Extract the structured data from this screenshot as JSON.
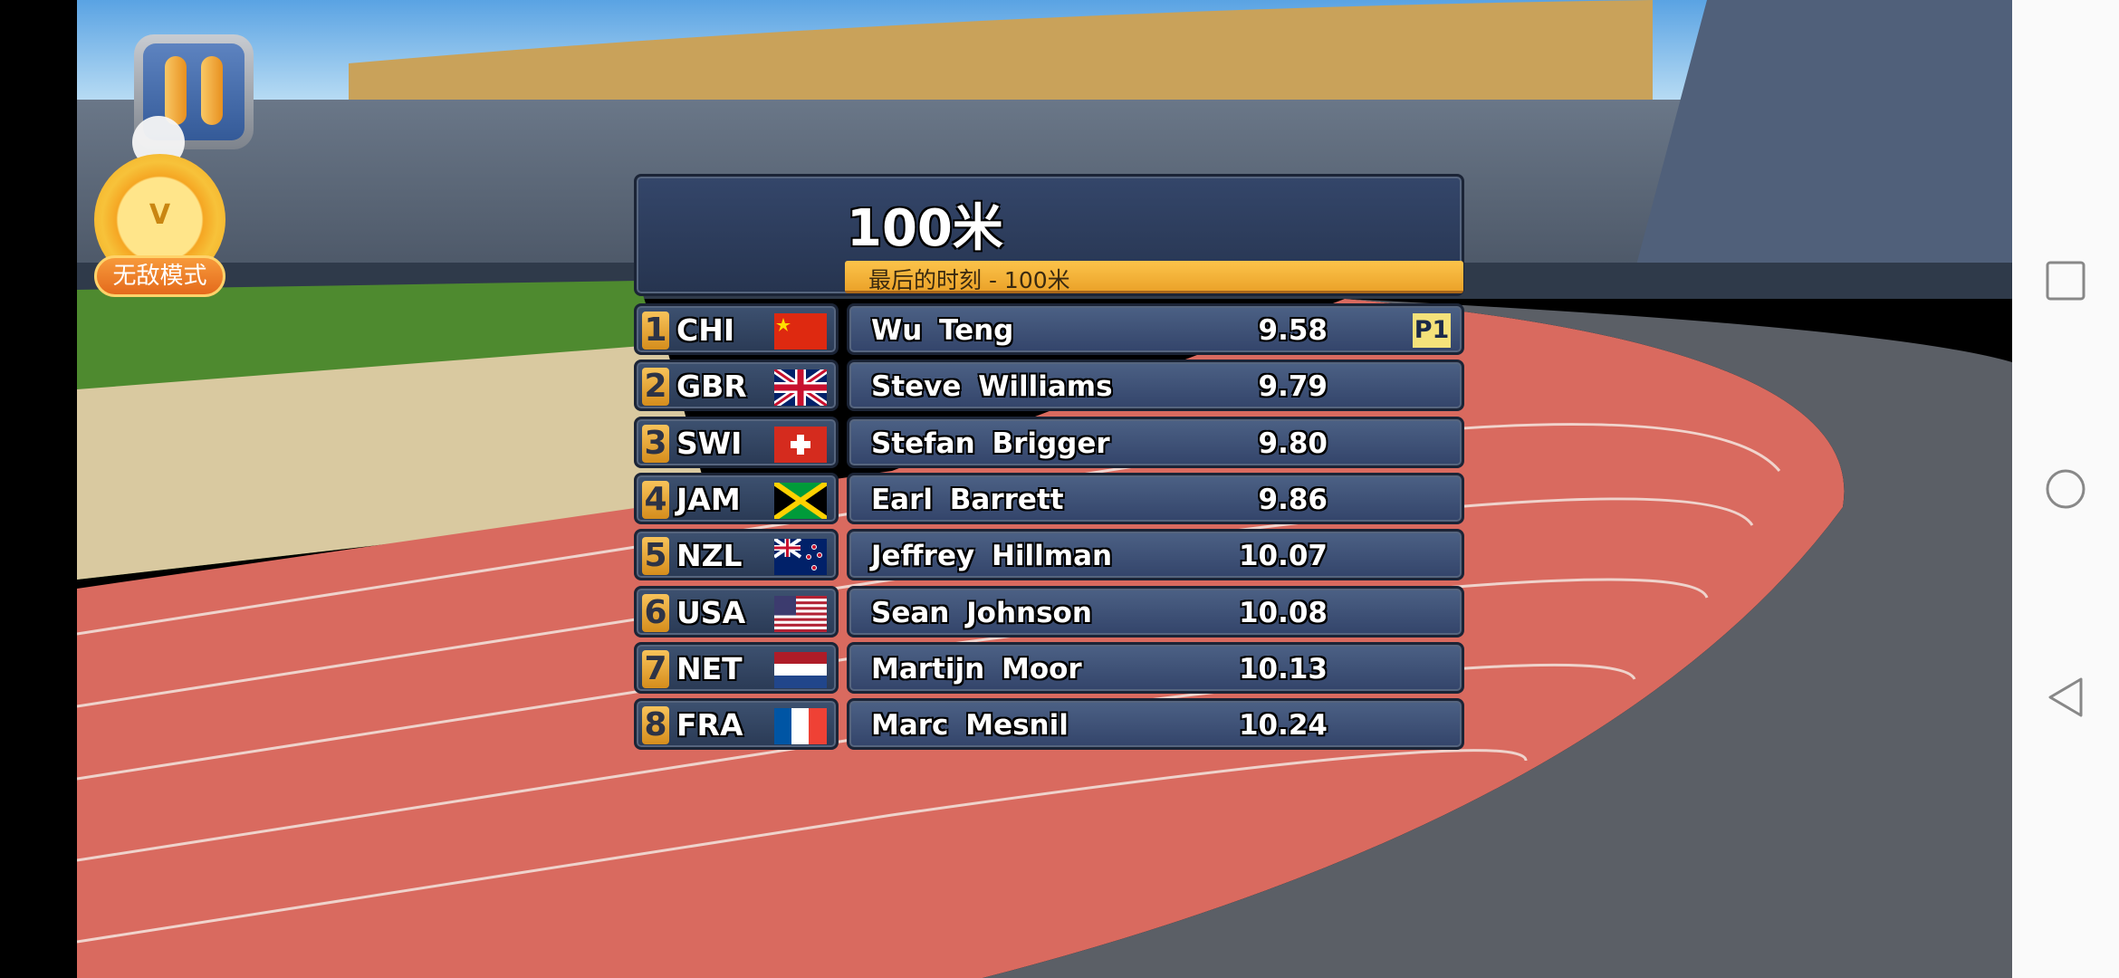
{
  "header": {
    "title": "100米",
    "subtitle": "最后的时刻  -  100米"
  },
  "results": [
    {
      "rank": "1",
      "country": "CHI",
      "flag": "china-flag",
      "name": "Wu  Teng",
      "time": "9.58",
      "badge": "P1"
    },
    {
      "rank": "2",
      "country": "GBR",
      "flag": "uk-flag",
      "name": "Steve  Williams",
      "time": "9.79"
    },
    {
      "rank": "3",
      "country": "SWI",
      "flag": "switzerland-flag",
      "name": "Stefan  Brigger",
      "time": "9.80"
    },
    {
      "rank": "4",
      "country": "JAM",
      "flag": "jamaica-flag",
      "name": "Earl  Barrett",
      "time": "9.86"
    },
    {
      "rank": "5",
      "country": "NZL",
      "flag": "new-zealand-flag",
      "name": "Jeffrey  Hillman",
      "time": "10.07"
    },
    {
      "rank": "6",
      "country": "USA",
      "flag": "usa-flag",
      "name": "Sean  Johnson",
      "time": "10.08"
    },
    {
      "rank": "7",
      "country": "NET",
      "flag": "netherlands-flag",
      "name": "Martijn  Moor",
      "time": "10.13"
    },
    {
      "rank": "8",
      "country": "FRA",
      "flag": "france-flag",
      "name": "Marc  Mesnil",
      "time": "10.24"
    }
  ],
  "hud": {
    "invincible_mode_label": "无敌模式",
    "medal_letter": "V"
  },
  "colors": {
    "panel": "#34466a",
    "accent": "#f4b03a",
    "track": "#d96a5f"
  }
}
